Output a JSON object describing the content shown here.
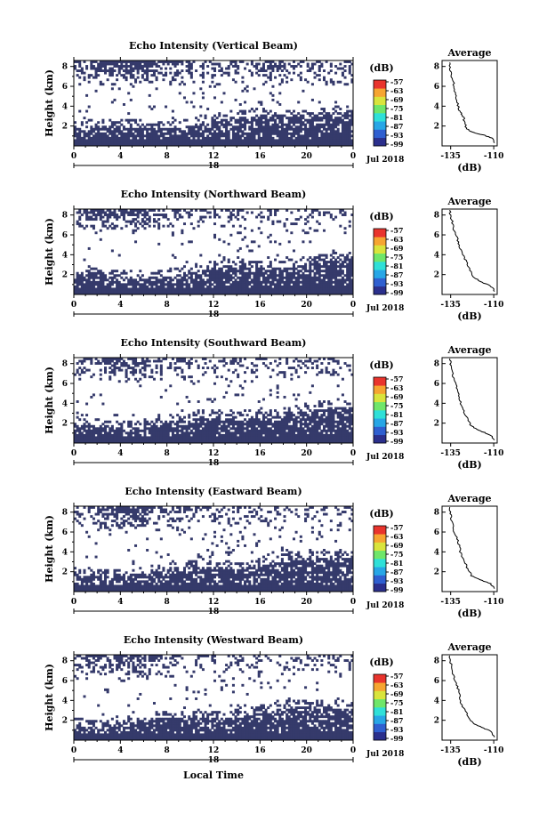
{
  "xlabel": "Local Time",
  "chart_data": [
    {
      "type": "heatmap",
      "title": "Echo Intensity (Vertical Beam)",
      "ylabel": "Height (km)",
      "xticks": [
        "0",
        "4",
        "8",
        "12",
        "16",
        "20",
        "0"
      ],
      "yticks": [
        "2",
        "4",
        "6",
        "8"
      ],
      "date_day": "18",
      "date_month": "Jul 2018",
      "colorbar_unit": "(dB)",
      "colorbar_ticks": [
        "-57",
        "-63",
        "-69",
        "-75",
        "-81",
        "-87",
        "-93",
        "-99"
      ],
      "profile_title": "Average",
      "profile_xticks": [
        "-135",
        "-110"
      ],
      "profile_yticks": [
        "2",
        "4",
        "6",
        "8"
      ],
      "profile_xlabel": "(dB)",
      "profile": [
        [
          -109,
          0.3
        ],
        [
          -111,
          0.8
        ],
        [
          -116,
          1.1
        ],
        [
          -123,
          1.4
        ],
        [
          -126,
          1.8
        ],
        [
          -127,
          2.5
        ],
        [
          -128,
          3.1
        ],
        [
          -130,
          3.6
        ],
        [
          -131,
          4.4
        ],
        [
          -132,
          5.2
        ],
        [
          -133,
          6.0
        ],
        [
          -134,
          6.8
        ],
        [
          -135,
          7.6
        ],
        [
          -135.5,
          8.4
        ]
      ]
    },
    {
      "type": "heatmap",
      "title": "Echo Intensity (Northward Beam)",
      "ylabel": "Height (km)",
      "xticks": [
        "0",
        "4",
        "8",
        "12",
        "16",
        "20",
        "0"
      ],
      "yticks": [
        "2",
        "4",
        "6",
        "8"
      ],
      "date_day": "18",
      "date_month": "Jul 2018",
      "colorbar_unit": "(dB)",
      "colorbar_ticks": [
        "-57",
        "-63",
        "-69",
        "-75",
        "-81",
        "-87",
        "-93",
        "-99"
      ],
      "profile_title": "Average",
      "profile_xticks": [
        "-135",
        "-110"
      ],
      "profile_yticks": [
        "2",
        "4",
        "6",
        "8"
      ],
      "profile_xlabel": "(dB)",
      "profile": [
        [
          -109,
          0.3
        ],
        [
          -112,
          0.9
        ],
        [
          -118,
          1.3
        ],
        [
          -122,
          1.8
        ],
        [
          -124,
          2.6
        ],
        [
          -126,
          3.3
        ],
        [
          -128,
          4.0
        ],
        [
          -130,
          4.8
        ],
        [
          -131,
          5.6
        ],
        [
          -133,
          6.4
        ],
        [
          -134,
          7.2
        ],
        [
          -135,
          8.0
        ],
        [
          -135.5,
          8.5
        ]
      ]
    },
    {
      "type": "heatmap",
      "title": "Echo Intensity (Southward Beam)",
      "ylabel": "Height (km)",
      "xticks": [
        "0",
        "4",
        "8",
        "12",
        "16",
        "20",
        "0"
      ],
      "yticks": [
        "2",
        "4",
        "6",
        "8"
      ],
      "date_day": "18",
      "date_month": "Jul 2018",
      "colorbar_unit": "(dB)",
      "colorbar_ticks": [
        "-57",
        "-63",
        "-69",
        "-75",
        "-81",
        "-87",
        "-93",
        "-99"
      ],
      "profile_title": "Average",
      "profile_xticks": [
        "-135",
        "-110"
      ],
      "profile_yticks": [
        "2",
        "4",
        "6",
        "8"
      ],
      "profile_xlabel": "(dB)",
      "profile": [
        [
          -109,
          0.3
        ],
        [
          -113,
          0.9
        ],
        [
          -119,
          1.3
        ],
        [
          -123,
          1.7
        ],
        [
          -125,
          2.4
        ],
        [
          -127,
          3.1
        ],
        [
          -129,
          3.8
        ],
        [
          -130,
          4.6
        ],
        [
          -131,
          5.4
        ],
        [
          -133,
          6.2
        ],
        [
          -134,
          7.0
        ],
        [
          -135,
          7.8
        ],
        [
          -135.5,
          8.5
        ]
      ]
    },
    {
      "type": "heatmap",
      "title": "Echo Intensity (Eastward Beam)",
      "ylabel": "Height (km)",
      "xticks": [
        "0",
        "4",
        "8",
        "12",
        "16",
        "20",
        "0"
      ],
      "yticks": [
        "2",
        "4",
        "6",
        "8"
      ],
      "date_day": "18",
      "date_month": "Jul 2018",
      "colorbar_unit": "(dB)",
      "colorbar_ticks": [
        "-57",
        "-63",
        "-69",
        "-75",
        "-81",
        "-87",
        "-93",
        "-99"
      ],
      "profile_title": "Average",
      "profile_xticks": [
        "-135",
        "-110"
      ],
      "profile_yticks": [
        "2",
        "4",
        "6",
        "8"
      ],
      "profile_xlabel": "(dB)",
      "profile": [
        [
          -109,
          0.3
        ],
        [
          -112,
          0.8
        ],
        [
          -118,
          1.2
        ],
        [
          -123,
          1.6
        ],
        [
          -125,
          2.3
        ],
        [
          -127,
          3.0
        ],
        [
          -129,
          3.7
        ],
        [
          -130,
          4.5
        ],
        [
          -131,
          5.3
        ],
        [
          -133,
          6.1
        ],
        [
          -134,
          6.9
        ],
        [
          -135,
          7.7
        ],
        [
          -135.5,
          8.5
        ]
      ]
    },
    {
      "type": "heatmap",
      "title": "Echo Intensity (Westward Beam)",
      "ylabel": "Height (km)",
      "xticks": [
        "0",
        "4",
        "8",
        "12",
        "16",
        "20",
        "0"
      ],
      "yticks": [
        "2",
        "4",
        "6",
        "8"
      ],
      "date_day": "18",
      "date_month": "Jul 2018",
      "colorbar_unit": "(dB)",
      "colorbar_ticks": [
        "-57",
        "-63",
        "-69",
        "-75",
        "-81",
        "-87",
        "-93",
        "-99"
      ],
      "profile_title": "Average",
      "profile_xticks": [
        "-135",
        "-110"
      ],
      "profile_yticks": [
        "2",
        "4",
        "6",
        "8"
      ],
      "profile_xlabel": "(dB)",
      "profile": [
        [
          -109,
          0.3
        ],
        [
          -112,
          0.9
        ],
        [
          -117,
          1.3
        ],
        [
          -122,
          1.7
        ],
        [
          -125,
          2.4
        ],
        [
          -127,
          3.1
        ],
        [
          -129,
          3.8
        ],
        [
          -130,
          4.6
        ],
        [
          -131,
          5.4
        ],
        [
          -133,
          6.2
        ],
        [
          -134,
          7.0
        ],
        [
          -135,
          7.8
        ],
        [
          -135.5,
          8.5
        ]
      ]
    }
  ],
  "colors": {
    "echo": "#353a6b",
    "colorbar": [
      "#2b2f8c",
      "#2f5fd0",
      "#27a6e6",
      "#2fe0d8",
      "#6fe66a",
      "#d9e43c",
      "#f6a531",
      "#e9342d"
    ]
  }
}
